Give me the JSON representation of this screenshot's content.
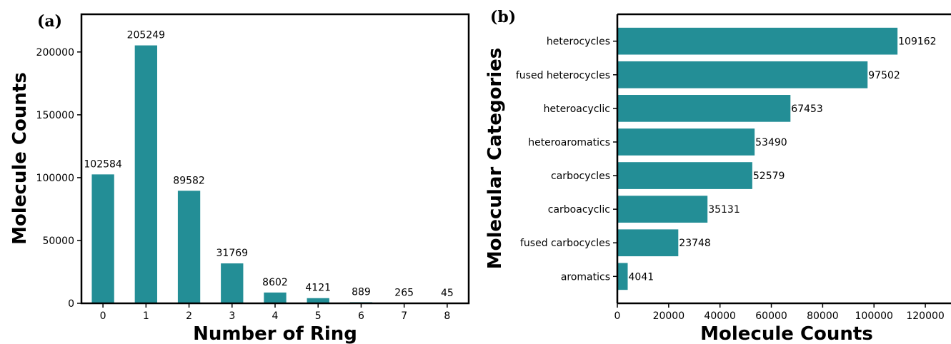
{
  "chart_data": [
    {
      "type": "bar",
      "panel_label": "(a)",
      "categories": [
        "0",
        "1",
        "2",
        "3",
        "4",
        "5",
        "6",
        "7",
        "8"
      ],
      "values": [
        102584,
        205249,
        89582,
        31769,
        8602,
        4121,
        889,
        265,
        45
      ],
      "xlabel": "Number of Ring",
      "ylabel": "Molecule Counts",
      "ylim": [
        0,
        230000
      ],
      "yticks": [
        0,
        50000,
        100000,
        150000,
        200000
      ],
      "color": "#238e96",
      "grid": false
    },
    {
      "type": "bar",
      "orientation": "horizontal",
      "panel_label": "(b)",
      "categories": [
        "heterocycles",
        "fused heterocycles",
        "heteroacyclic",
        "heteroaromatics",
        "carbocycles",
        "carboacyclic",
        "fused carbocycles",
        "aromatics"
      ],
      "values": [
        109162,
        97502,
        67453,
        53490,
        52579,
        35131,
        23748,
        4041
      ],
      "xlabel": "Molecule Counts",
      "ylabel": "Molecular Categories",
      "xlim": [
        0,
        130000
      ],
      "xticks": [
        0,
        20000,
        40000,
        60000,
        80000,
        100000,
        120000
      ],
      "color": "#238e96",
      "grid": false
    }
  ]
}
